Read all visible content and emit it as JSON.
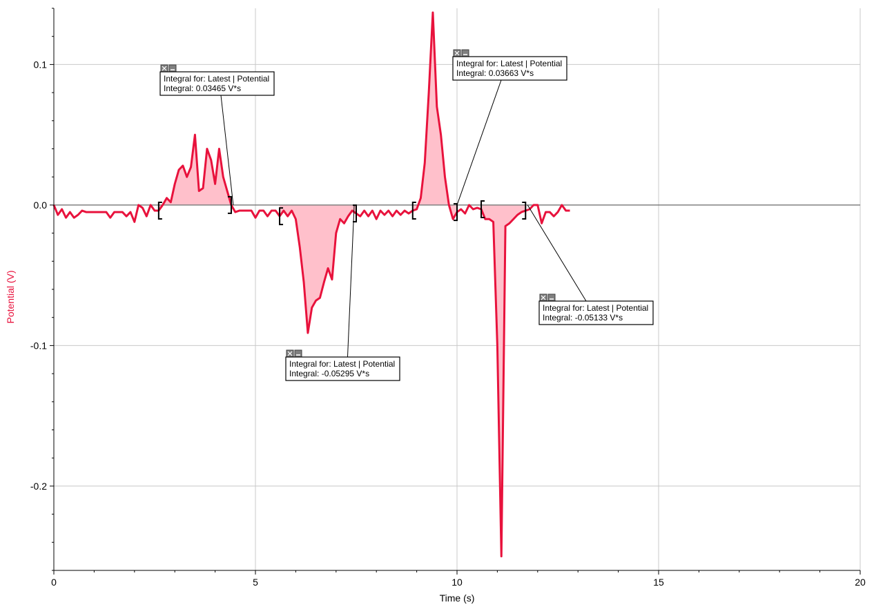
{
  "chart_data": {
    "type": "line",
    "xlabel": "Time (s)",
    "ylabel": "Potential (V)",
    "xlim": [
      0,
      20
    ],
    "ylim": [
      -0.26,
      0.14
    ],
    "x_ticks": [
      0,
      5,
      10,
      15,
      20
    ],
    "x_tick_labels": [
      "0",
      "5",
      "10",
      "15",
      "20"
    ],
    "y_ticks": [
      0.1,
      0.0,
      -0.1,
      -0.2
    ],
    "y_tick_labels": [
      "0.1",
      "0.0",
      "-0.1",
      "-0.2"
    ],
    "grid": true,
    "colors": {
      "line": "#e8123c",
      "fill": "#ffc0cb",
      "axis_title": "#e8123c"
    },
    "series": [
      {
        "name": "Latest | Potential",
        "points": [
          [
            0.0,
            0.0
          ],
          [
            0.1,
            -0.007
          ],
          [
            0.2,
            -0.003
          ],
          [
            0.3,
            -0.009
          ],
          [
            0.4,
            -0.005
          ],
          [
            0.5,
            -0.009
          ],
          [
            0.6,
            -0.007
          ],
          [
            0.7,
            -0.004
          ],
          [
            0.8,
            -0.005
          ],
          [
            0.9,
            -0.005
          ],
          [
            1.0,
            -0.005
          ],
          [
            1.1,
            -0.005
          ],
          [
            1.2,
            -0.005
          ],
          [
            1.3,
            -0.005
          ],
          [
            1.4,
            -0.009
          ],
          [
            1.5,
            -0.005
          ],
          [
            1.6,
            -0.005
          ],
          [
            1.7,
            -0.005
          ],
          [
            1.8,
            -0.008
          ],
          [
            1.9,
            -0.005
          ],
          [
            2.0,
            -0.012
          ],
          [
            2.1,
            0.0
          ],
          [
            2.2,
            -0.002
          ],
          [
            2.3,
            -0.008
          ],
          [
            2.4,
            0.0
          ],
          [
            2.5,
            -0.004
          ],
          [
            2.6,
            -0.004
          ],
          [
            2.7,
            0.0
          ],
          [
            2.8,
            0.005
          ],
          [
            2.9,
            0.002
          ],
          [
            3.0,
            0.015
          ],
          [
            3.1,
            0.025
          ],
          [
            3.2,
            0.028
          ],
          [
            3.3,
            0.02
          ],
          [
            3.4,
            0.027
          ],
          [
            3.5,
            0.05
          ],
          [
            3.6,
            0.01
          ],
          [
            3.7,
            0.012
          ],
          [
            3.8,
            0.04
          ],
          [
            3.9,
            0.032
          ],
          [
            4.0,
            0.015
          ],
          [
            4.1,
            0.04
          ],
          [
            4.2,
            0.02
          ],
          [
            4.3,
            0.01
          ],
          [
            4.4,
            0.0
          ],
          [
            4.5,
            -0.005
          ],
          [
            4.6,
            -0.004
          ],
          [
            4.7,
            -0.004
          ],
          [
            4.8,
            -0.004
          ],
          [
            4.9,
            -0.004
          ],
          [
            5.0,
            -0.009
          ],
          [
            5.1,
            -0.004
          ],
          [
            5.2,
            -0.004
          ],
          [
            5.3,
            -0.008
          ],
          [
            5.4,
            -0.004
          ],
          [
            5.5,
            -0.004
          ],
          [
            5.6,
            -0.008
          ],
          [
            5.7,
            -0.004
          ],
          [
            5.8,
            -0.008
          ],
          [
            5.9,
            -0.004
          ],
          [
            6.0,
            -0.01
          ],
          [
            6.1,
            -0.03
          ],
          [
            6.2,
            -0.055
          ],
          [
            6.3,
            -0.091
          ],
          [
            6.4,
            -0.073
          ],
          [
            6.5,
            -0.068
          ],
          [
            6.6,
            -0.066
          ],
          [
            6.7,
            -0.055
          ],
          [
            6.8,
            -0.045
          ],
          [
            6.9,
            -0.053
          ],
          [
            7.0,
            -0.02
          ],
          [
            7.1,
            -0.01
          ],
          [
            7.2,
            -0.013
          ],
          [
            7.3,
            -0.008
          ],
          [
            7.4,
            -0.004
          ],
          [
            7.5,
            -0.006
          ],
          [
            7.6,
            -0.008
          ],
          [
            7.7,
            -0.004
          ],
          [
            7.8,
            -0.008
          ],
          [
            7.9,
            -0.004
          ],
          [
            8.0,
            -0.01
          ],
          [
            8.1,
            -0.004
          ],
          [
            8.2,
            -0.007
          ],
          [
            8.3,
            -0.004
          ],
          [
            8.4,
            -0.008
          ],
          [
            8.5,
            -0.004
          ],
          [
            8.6,
            -0.007
          ],
          [
            8.7,
            -0.004
          ],
          [
            8.8,
            -0.006
          ],
          [
            8.9,
            -0.004
          ],
          [
            9.0,
            -0.003
          ],
          [
            9.1,
            0.005
          ],
          [
            9.2,
            0.03
          ],
          [
            9.3,
            0.08
          ],
          [
            9.4,
            0.137
          ],
          [
            9.5,
            0.07
          ],
          [
            9.6,
            0.05
          ],
          [
            9.7,
            0.02
          ],
          [
            9.8,
            0.0
          ],
          [
            9.9,
            -0.01
          ],
          [
            10.0,
            -0.005
          ],
          [
            10.1,
            -0.003
          ],
          [
            10.2,
            -0.006
          ],
          [
            10.3,
            0.0
          ],
          [
            10.4,
            -0.003
          ],
          [
            10.5,
            -0.002
          ],
          [
            10.6,
            -0.003
          ],
          [
            10.7,
            -0.01
          ],
          [
            10.8,
            -0.01
          ],
          [
            10.9,
            -0.012
          ],
          [
            11.0,
            -0.1
          ],
          [
            11.1,
            -0.25
          ],
          [
            11.2,
            -0.015
          ],
          [
            11.3,
            -0.013
          ],
          [
            11.4,
            -0.01
          ],
          [
            11.5,
            -0.007
          ],
          [
            11.6,
            -0.005
          ],
          [
            11.7,
            -0.004
          ],
          [
            11.8,
            -0.003
          ],
          [
            11.9,
            0.0
          ],
          [
            12.0,
            0.0
          ],
          [
            12.1,
            -0.013
          ],
          [
            12.2,
            -0.005
          ],
          [
            12.3,
            -0.005
          ],
          [
            12.4,
            -0.008
          ],
          [
            12.5,
            -0.005
          ],
          [
            12.6,
            0.0
          ],
          [
            12.7,
            -0.004
          ],
          [
            12.8,
            -0.004
          ]
        ]
      }
    ],
    "integral_regions": [
      {
        "from": 2.6,
        "to": 4.4,
        "label": "Integral for: Latest | Potential",
        "value": "Integral: 0.03465 V*s"
      },
      {
        "from": 5.6,
        "to": 7.5,
        "label": "Integral for: Latest | Potential",
        "value": "Integral: -0.05295 V*s"
      },
      {
        "from": 8.9,
        "to": 10.0,
        "label": "Integral for: Latest | Potential",
        "value": "Integral: 0.03663 V*s"
      },
      {
        "from": 10.6,
        "to": 11.7,
        "label": "Integral for: Latest | Potential",
        "value": "Integral: -0.05133 V*s"
      }
    ]
  }
}
